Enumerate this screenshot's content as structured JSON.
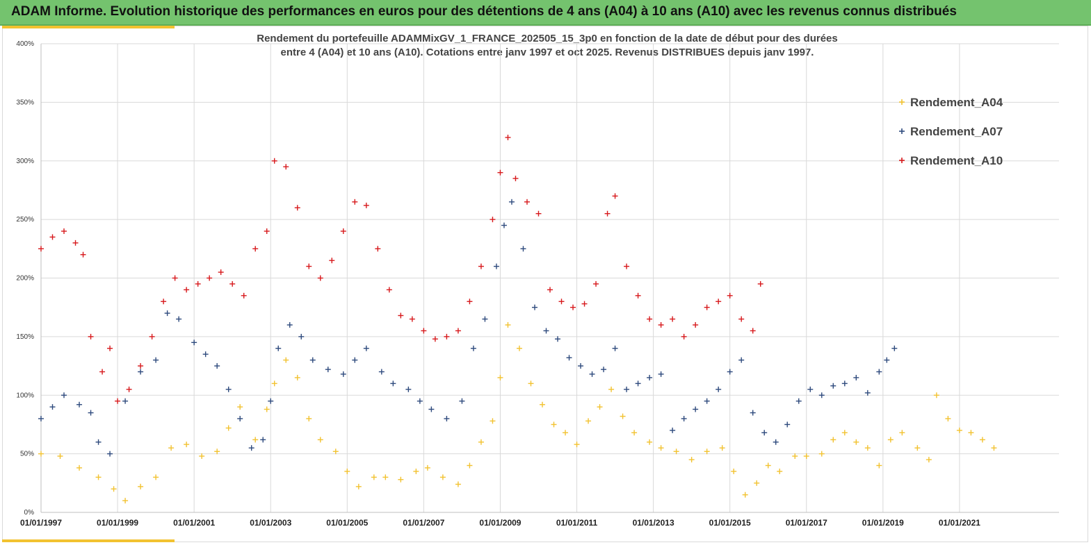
{
  "banner": {
    "title": "ADAM Informe. Evolution historique des performances en euros pour des détentions de 4 ans (A04) à 10 ans (A10) avec les revenus connus distribués",
    "color": "#74c36e"
  },
  "chart_data": {
    "type": "scatter",
    "title_line1": "Rendement du portefeuille ADAMMixGV_1_FRANCE_202505_15_3p0  en fonction de la date de début pour des durées",
    "title_line2": "entre 4 (A04) et 10 ans (A10). Cotations  entre janv 1997 et oct 2025. Revenus DISTRIBUES depuis janv 1997.",
    "xlabel": "",
    "ylabel": "",
    "y_ticks": [
      "0%",
      "50%",
      "100%",
      "150%",
      "200%",
      "250%",
      "300%",
      "350%",
      "400%"
    ],
    "ylim": [
      0,
      400
    ],
    "x_ticks": [
      "01/01/1997",
      "01/01/1999",
      "01/01/2001",
      "01/01/2003",
      "01/01/2005",
      "01/01/2007",
      "01/01/2009",
      "01/01/2011",
      "01/01/2013",
      "01/01/2015",
      "01/01/2017",
      "01/01/2019",
      "01/01/2021"
    ],
    "xlim": [
      1997.0,
      2023.6
    ],
    "grid": true,
    "legend_position": "top-right",
    "marker": "+",
    "series": [
      {
        "name": "Rendement_A04",
        "color": "#f2c230",
        "x": [
          1997.0,
          1997.5,
          1998.0,
          1998.5,
          1998.9,
          1999.2,
          1999.6,
          2000.0,
          2000.4,
          2000.8,
          2001.2,
          2001.6,
          2001.9,
          2002.2,
          2002.6,
          2002.9,
          2003.1,
          2003.4,
          2003.7,
          2004.0,
          2004.3,
          2004.7,
          2005.0,
          2005.3,
          2005.7,
          2006.0,
          2006.4,
          2006.8,
          2007.1,
          2007.5,
          2007.9,
          2008.2,
          2008.5,
          2008.8,
          2009.0,
          2009.2,
          2009.5,
          2009.8,
          2010.1,
          2010.4,
          2010.7,
          2011.0,
          2011.3,
          2011.6,
          2011.9,
          2012.2,
          2012.5,
          2012.9,
          2013.2,
          2013.6,
          2014.0,
          2014.4,
          2014.8,
          2015.1,
          2015.4,
          2015.7,
          2016.0,
          2016.3,
          2016.7,
          2017.0,
          2017.4,
          2017.7,
          2018.0,
          2018.3,
          2018.6,
          2018.9,
          2019.2,
          2019.5,
          2019.9,
          2020.2,
          2020.4,
          2020.7,
          2021.0,
          2021.3,
          2021.6,
          2021.9
        ],
        "values": [
          50,
          48,
          38,
          30,
          20,
          10,
          22,
          30,
          55,
          58,
          48,
          52,
          72,
          90,
          62,
          88,
          110,
          130,
          115,
          80,
          62,
          52,
          35,
          22,
          30,
          30,
          28,
          35,
          38,
          30,
          24,
          40,
          60,
          78,
          115,
          160,
          140,
          110,
          92,
          75,
          68,
          58,
          78,
          90,
          105,
          82,
          68,
          60,
          55,
          52,
          45,
          52,
          55,
          35,
          15,
          25,
          40,
          35,
          48,
          48,
          50,
          62,
          68,
          60,
          55,
          40,
          62,
          68,
          55,
          45,
          100,
          80,
          70,
          68,
          62,
          55
        ]
      },
      {
        "name": "Rendement_A07",
        "color": "#2e4a7d",
        "x": [
          1997.0,
          1997.3,
          1997.6,
          1998.0,
          1998.3,
          1998.5,
          1998.8,
          1999.2,
          1999.6,
          2000.0,
          2000.3,
          2000.6,
          2001.0,
          2001.3,
          2001.6,
          2001.9,
          2002.2,
          2002.5,
          2002.8,
          2003.0,
          2003.2,
          2003.5,
          2003.8,
          2004.1,
          2004.5,
          2004.9,
          2005.2,
          2005.5,
          2005.9,
          2006.2,
          2006.6,
          2006.9,
          2007.2,
          2007.6,
          2008.0,
          2008.3,
          2008.6,
          2008.9,
          2009.1,
          2009.3,
          2009.6,
          2009.9,
          2010.2,
          2010.5,
          2010.8,
          2011.1,
          2011.4,
          2011.7,
          2012.0,
          2012.3,
          2012.6,
          2012.9,
          2013.2,
          2013.5,
          2013.8,
          2014.1,
          2014.4,
          2014.7,
          2015.0,
          2015.3,
          2015.6,
          2015.9,
          2016.2,
          2016.5,
          2016.8,
          2017.1,
          2017.4,
          2017.7,
          2018.0,
          2018.3,
          2018.6,
          2018.9,
          2019.1,
          2019.3
        ],
        "values": [
          80,
          90,
          100,
          92,
          85,
          60,
          50,
          95,
          120,
          130,
          170,
          165,
          145,
          135,
          125,
          105,
          80,
          55,
          62,
          95,
          140,
          160,
          150,
          130,
          122,
          118,
          130,
          140,
          120,
          110,
          105,
          95,
          88,
          80,
          95,
          140,
          165,
          210,
          245,
          265,
          225,
          175,
          155,
          148,
          132,
          125,
          118,
          122,
          140,
          105,
          110,
          115,
          118,
          70,
          80,
          88,
          95,
          105,
          120,
          130,
          85,
          68,
          60,
          75,
          95,
          105,
          100,
          108,
          110,
          115,
          102,
          120,
          130,
          140
        ]
      },
      {
        "name": "Rendement_A10",
        "color": "#d7191c",
        "x": [
          1997.0,
          1997.3,
          1997.6,
          1997.9,
          1998.1,
          1998.3,
          1998.6,
          1998.8,
          1999.0,
          1999.3,
          1999.6,
          1999.9,
          2000.2,
          2000.5,
          2000.8,
          2001.1,
          2001.4,
          2001.7,
          2002.0,
          2002.3,
          2002.6,
          2002.9,
          2003.1,
          2003.4,
          2003.7,
          2004.0,
          2004.3,
          2004.6,
          2004.9,
          2005.2,
          2005.5,
          2005.8,
          2006.1,
          2006.4,
          2006.7,
          2007.0,
          2007.3,
          2007.6,
          2007.9,
          2008.2,
          2008.5,
          2008.8,
          2009.0,
          2009.2,
          2009.4,
          2009.7,
          2010.0,
          2010.3,
          2010.6,
          2010.9,
          2011.2,
          2011.5,
          2011.8,
          2012.0,
          2012.3,
          2012.6,
          2012.9,
          2013.2,
          2013.5,
          2013.8,
          2014.1,
          2014.4,
          2014.7,
          2015.0,
          2015.3,
          2015.6,
          2015.8
        ],
        "values": [
          225,
          235,
          240,
          230,
          220,
          150,
          120,
          140,
          95,
          105,
          125,
          150,
          180,
          200,
          190,
          195,
          200,
          205,
          195,
          185,
          225,
          240,
          300,
          295,
          260,
          210,
          200,
          215,
          240,
          265,
          262,
          225,
          190,
          168,
          165,
          155,
          148,
          150,
          155,
          180,
          210,
          250,
          290,
          320,
          285,
          265,
          255,
          190,
          180,
          175,
          178,
          195,
          255,
          270,
          210,
          185,
          165,
          160,
          165,
          150,
          160,
          175,
          180,
          185,
          165,
          155,
          195
        ]
      }
    ]
  }
}
